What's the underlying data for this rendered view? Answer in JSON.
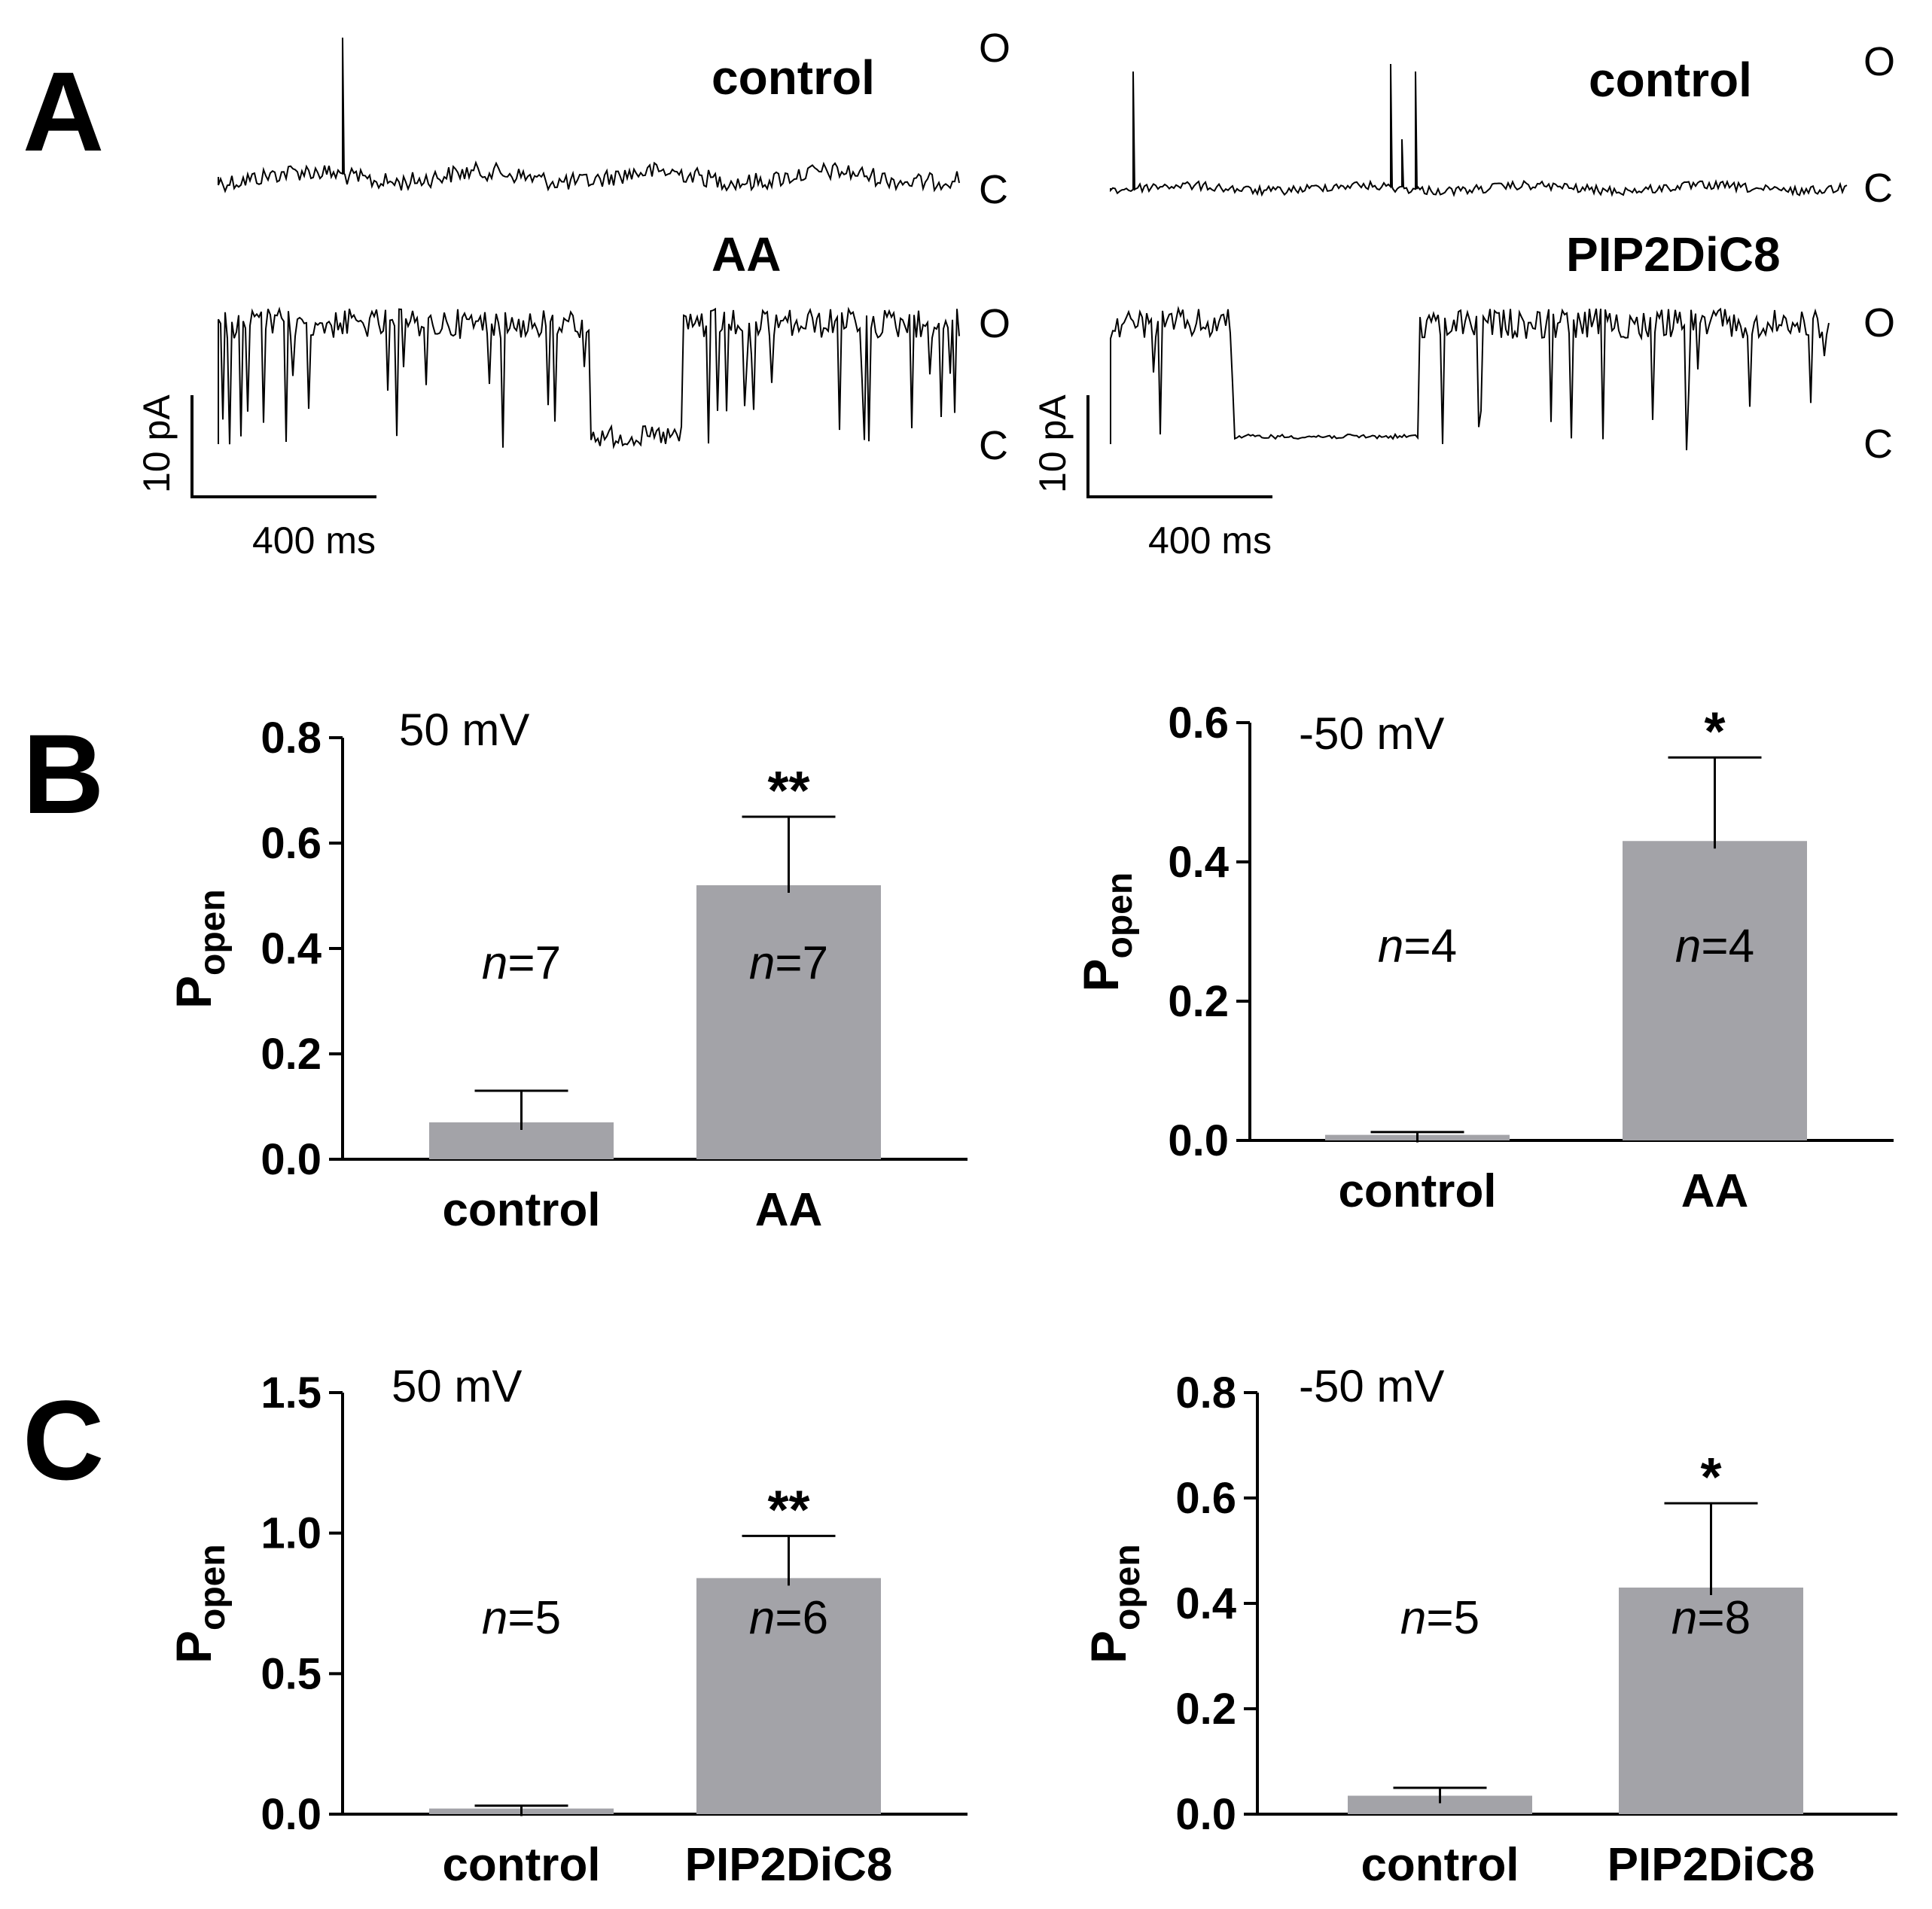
{
  "panels": {
    "A": "A",
    "B": "B",
    "C": "C"
  },
  "traces": {
    "left": {
      "control_label": "control",
      "treatment_label": "AA",
      "state_open": "O",
      "state_closed": "C",
      "scale_y": "10 pA",
      "scale_x": "400 ms"
    },
    "right": {
      "control_label": "control",
      "treatment_label": "PIP2DiC8",
      "state_open": "O",
      "state_closed": "C",
      "scale_y": "10 pA",
      "scale_x": "400 ms"
    }
  },
  "colors": {
    "bar": "#a3a3a8",
    "ink": "#000000"
  },
  "chart_data": [
    {
      "id": "B1",
      "type": "bar",
      "title": "50 mV",
      "ylabel": "P",
      "ylabel_sub": "open",
      "categories": [
        "control",
        "AA"
      ],
      "values": [
        0.07,
        0.52
      ],
      "errors": [
        0.06,
        0.13
      ],
      "n_labels": [
        "7",
        "7"
      ],
      "sig": [
        "",
        "**"
      ],
      "ylim": [
        0,
        0.8
      ],
      "yticks": [
        0.0,
        0.2,
        0.4,
        0.6,
        0.8
      ],
      "decimals": 1
    },
    {
      "id": "B2",
      "type": "bar",
      "title": "-50 mV",
      "ylabel": "P",
      "ylabel_sub": "open",
      "categories": [
        "control",
        "AA"
      ],
      "values": [
        0.008,
        0.43
      ],
      "errors": [
        0.004,
        0.12
      ],
      "n_labels": [
        "4",
        "4"
      ],
      "sig": [
        "",
        "*"
      ],
      "ylim": [
        0,
        0.6
      ],
      "yticks": [
        0.0,
        0.2,
        0.4,
        0.6
      ],
      "decimals": 1
    },
    {
      "id": "C1",
      "type": "bar",
      "title": "50 mV",
      "ylabel": "P",
      "ylabel_sub": "open",
      "categories": [
        "control",
        "PIP2DiC8"
      ],
      "values": [
        0.02,
        0.84
      ],
      "errors": [
        0.01,
        0.15
      ],
      "n_labels": [
        "5",
        "6"
      ],
      "sig": [
        "",
        "**"
      ],
      "ylim": [
        0,
        1.5
      ],
      "yticks": [
        0.0,
        0.5,
        1.0,
        1.5
      ],
      "decimals": 1
    },
    {
      "id": "C2",
      "type": "bar",
      "title": "-50 mV",
      "ylabel": "P",
      "ylabel_sub": "open",
      "categories": [
        "control",
        "PIP2DiC8"
      ],
      "values": [
        0.035,
        0.43
      ],
      "errors": [
        0.015,
        0.16
      ],
      "n_labels": [
        "5",
        "8"
      ],
      "sig": [
        "",
        "*"
      ],
      "ylim": [
        0,
        0.8
      ],
      "yticks": [
        0.0,
        0.2,
        0.4,
        0.6,
        0.8
      ],
      "decimals": 1
    }
  ]
}
